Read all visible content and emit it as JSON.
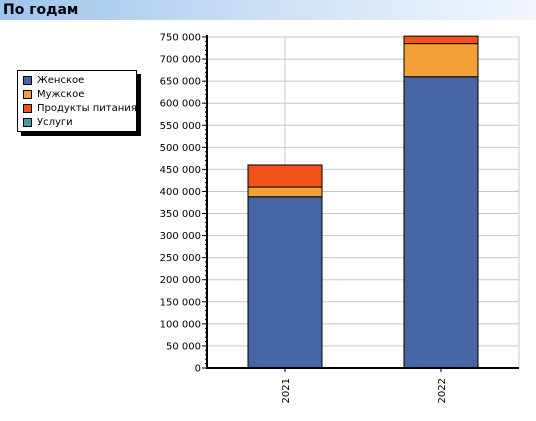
{
  "header": {
    "title": "По годам"
  },
  "chart_data": {
    "type": "bar",
    "stacked": true,
    "categories": [
      "2021",
      "2022"
    ],
    "series": [
      {
        "name": "Женское",
        "color": "#4665a4",
        "values": [
          388000,
          660000
        ]
      },
      {
        "name": "Мужское",
        "color": "#f2a037",
        "values": [
          22000,
          75000
        ]
      },
      {
        "name": "Продукты питания",
        "color": "#f25119",
        "values": [
          50000,
          17000
        ]
      },
      {
        "name": "Услуги",
        "color": "#4a9aa6",
        "values": [
          0,
          0
        ]
      }
    ],
    "yticks": [
      "0",
      "50 000",
      "100 000",
      "150 000",
      "200 000",
      "250 000",
      "300 000",
      "350 000",
      "400 000",
      "450 000",
      "500 000",
      "550 000",
      "600 000",
      "650 000",
      "700 000",
      "750 000"
    ],
    "ylim": [
      0,
      750000
    ],
    "grid": true,
    "legend_position": "left"
  }
}
